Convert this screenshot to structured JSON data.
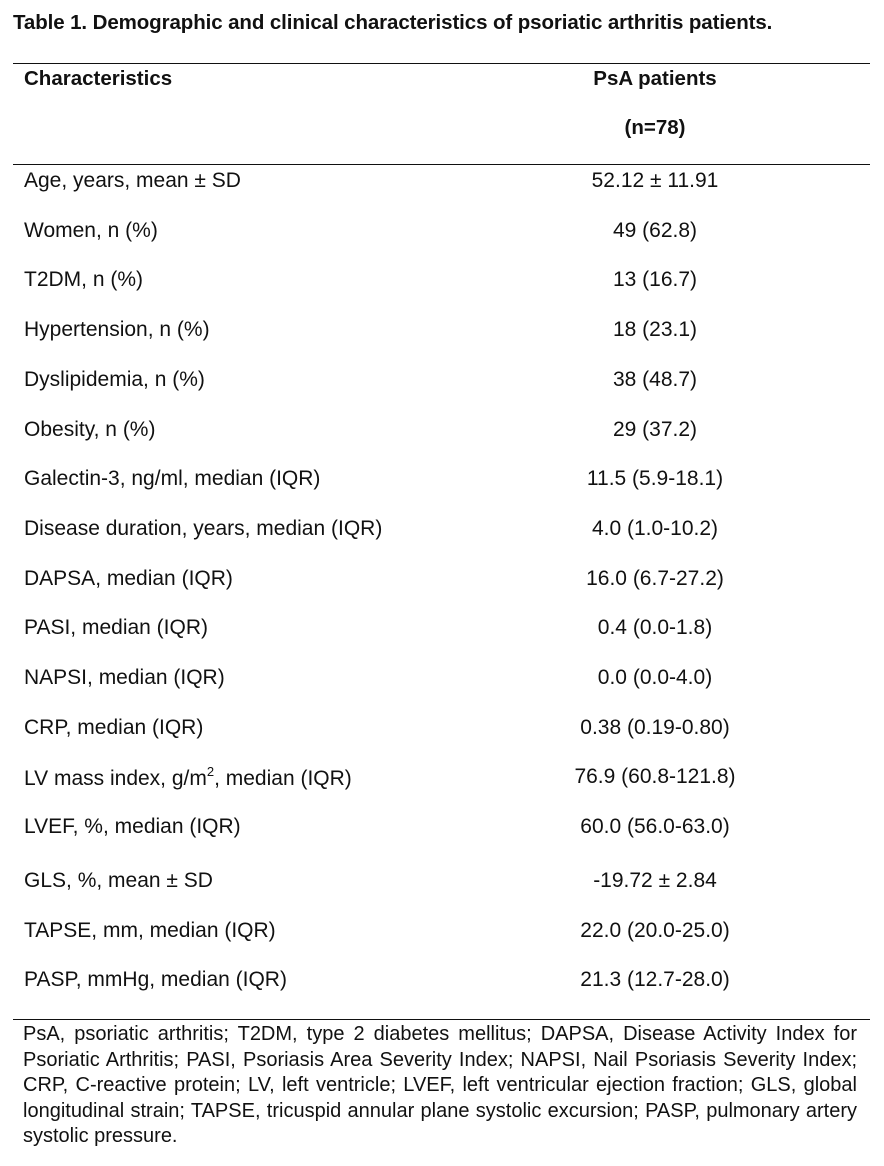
{
  "caption": "Table 1. Demographic and clinical characteristics of psoriatic arthritis patients.",
  "header": {
    "characteristics": "Characteristics",
    "group_line1": "PsA patients",
    "group_line2": "(n=78)"
  },
  "rows": [
    {
      "label": "Age, years, mean ± SD",
      "value": "52.12 ± 11.91"
    },
    {
      "label": "Women, n (%)",
      "value": "49 (62.8)"
    },
    {
      "label": "T2DM, n (%)",
      "value": "13 (16.7)"
    },
    {
      "label": "Hypertension, n (%)",
      "value": "18 (23.1)"
    },
    {
      "label": "Dyslipidemia, n (%)",
      "value": "38 (48.7)"
    },
    {
      "label": "Obesity, n (%)",
      "value": "29 (37.2)"
    },
    {
      "label": "Galectin-3, ng/ml, median (IQR)",
      "value": "11.5 (5.9-18.1)"
    },
    {
      "label": "Disease duration, years, median (IQR)",
      "value": "4.0 (1.0-10.2)"
    },
    {
      "label": "DAPSA, median (IQR)",
      "value": "16.0 (6.7-27.2)"
    },
    {
      "label": "PASI, median (IQR)",
      "value": "0.4 (0.0-1.8)"
    },
    {
      "label": "NAPSI, median (IQR)",
      "value": "0.0 (0.0-4.0)"
    },
    {
      "label": "CRP, median (IQR)",
      "value": "0.38 (0.19-0.80)"
    },
    {
      "label_pre": "LV mass index, g/m",
      "label_sup": "2",
      "label_post": ", median (IQR)",
      "value": "76.9 (60.8-121.8)"
    },
    {
      "label": "LVEF, %, median (IQR)",
      "value": "60.0 (56.0-63.0)"
    },
    {
      "label": "GLS, %, mean ± SD",
      "value": "-19.72 ± 2.84"
    },
    {
      "label": "TAPSE, mm, median (IQR)",
      "value": "22.0 (20.0-25.0)"
    },
    {
      "label": "PASP, mmHg, median (IQR)",
      "value": "21.3 (12.7-28.0)"
    }
  ],
  "footnote": "PsA, psoriatic arthritis; T2DM, type 2 diabetes mellitus; DAPSA, Disease Activity Index for Psoriatic Arthritis; PASI, Psoriasis Area Severity Index; NAPSI, Nail Psoriasis Severity Index; CRP, C-reactive protein; LV, left ventricle; LVEF, left ventricular ejection fraction; GLS, global longitudinal strain; TAPSE, tricuspid annular plane systolic excursion; PASP, pulmonary artery systolic pressure."
}
